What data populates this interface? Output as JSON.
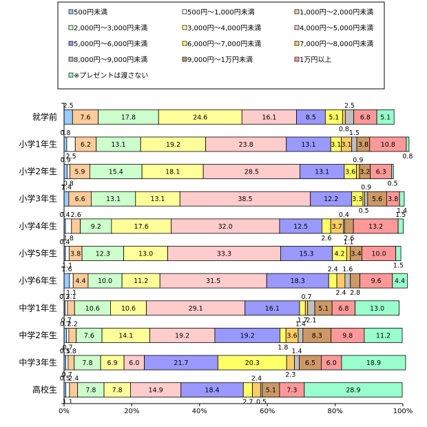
{
  "chart_data": {
    "type": "bar",
    "orientation": "horizontal",
    "stacked": "percent",
    "xlim": [
      0,
      100
    ],
    "x_ticks": [
      "0%",
      "20%",
      "40%",
      "60%",
      "80%",
      "100%"
    ],
    "legend_position": "top",
    "categories": [
      "就学前",
      "小学1年生",
      "小学2年生",
      "小学3年生",
      "小学4年生",
      "小学5年生",
      "小学6年生",
      "中学1年生",
      "中学2年生",
      "中学3年生",
      "高校生"
    ],
    "series": [
      {
        "name": "500円未満",
        "color": "#99ccff",
        "values": [
          2.5,
          0.8,
          0.9,
          1.4,
          0.4,
          0.4,
          1.6,
          0.3,
          0.7,
          0.5,
          0.5
        ]
      },
      {
        "name": "500円～1,000円未満",
        "color": "#ffffff",
        "values": [
          0,
          2.5,
          0.8,
          0,
          1.8,
          1.1,
          1.1,
          0.7,
          0.7,
          0.7,
          1.1
        ]
      },
      {
        "name": "1,000円～2,000円未満",
        "color": "#ffcc99",
        "values": [
          7.6,
          6.2,
          5.9,
          6.6,
          2.6,
          3.8,
          4.4,
          2.1,
          2.2,
          1.8,
          2.4
        ]
      },
      {
        "name": "2,000円～3,000円未満",
        "color": "#ccffcc",
        "values": [
          17.8,
          13.1,
          15.4,
          13.1,
          9.2,
          12.3,
          10.0,
          10.6,
          7.6,
          7.8,
          7.8
        ]
      },
      {
        "name": "3,000円～4,000円未満",
        "color": "#ffff99",
        "values": [
          24.6,
          19.2,
          18.1,
          13.1,
          17.6,
          13.0,
          11.2,
          10.6,
          14.1,
          6.9,
          7.8
        ]
      },
      {
        "name": "4,000円～5,000円未満",
        "color": "#ffcccc",
        "values": [
          16.1,
          23.8,
          28.5,
          38.5,
          32.0,
          33.3,
          31.5,
          29.1,
          19.2,
          6.0,
          14.9
        ]
      },
      {
        "name": "5,000円～6,000円未満",
        "color": "#9999ff",
        "values": [
          8.5,
          13.1,
          13.1,
          12.2,
          12.5,
          15.3,
          18.3,
          16.1,
          19.2,
          21.7,
          18.4
        ]
      },
      {
        "name": "6,000円～7,000円未満",
        "color": "#ffff66",
        "values": [
          5.1,
          3.1,
          3.6,
          3.3,
          2.6,
          4.2,
          2.4,
          1.7,
          1.8,
          20.3,
          2.7
        ]
      },
      {
        "name": "7,000円～8,000円未満",
        "color": "#ffcc66",
        "values": [
          0.8,
          3.1,
          0.9,
          0.5,
          3.7,
          1.1,
          2.4,
          0.7,
          3.6,
          2.3,
          2.4
        ]
      },
      {
        "name": "8,000円～9,000円未満",
        "color": "#c0c0c0",
        "values": [
          2.5,
          1.5,
          0,
          0.9,
          0.4,
          0,
          1.6,
          2.1,
          1.4,
          1.4,
          0.5
        ]
      },
      {
        "name": "9,000円～1万円未満",
        "color": "#cc9966",
        "values": [
          0,
          3.8,
          3.2,
          5.6,
          2.6,
          3.4,
          2.8,
          5.1,
          8.3,
          6.5,
          5.1
        ]
      },
      {
        "name": "1万円以上",
        "color": "#ff9999",
        "values": [
          6.8,
          10.8,
          6.3,
          3.8,
          13.2,
          10.0,
          9.6,
          6.8,
          9.8,
          6.0,
          7.3
        ]
      },
      {
        "name": "※プレゼントは渡さない",
        "color": "#99ffcc",
        "values": [
          5.1,
          0.8,
          0.5,
          1.4,
          1.5,
          1.5,
          4.4,
          13.0,
          11.2,
          18.9,
          28.9
        ]
      }
    ]
  }
}
